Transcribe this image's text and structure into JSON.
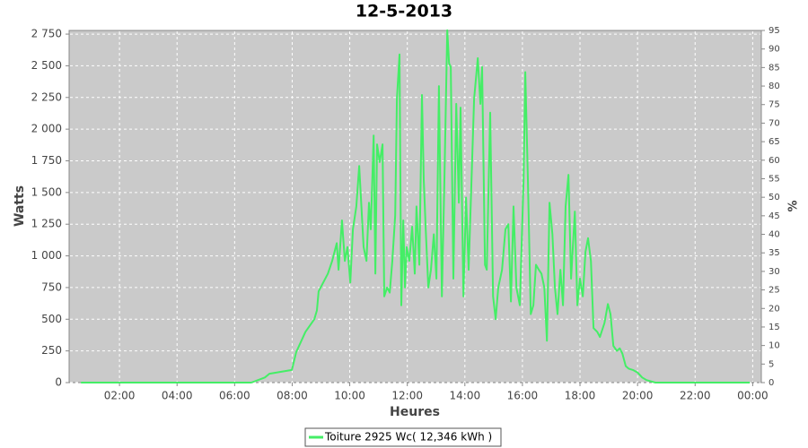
{
  "chart_data": {
    "type": "line",
    "title": "12-5-2013",
    "x_label": "Heures",
    "y_label": "Watts",
    "y2_label": "%",
    "x": [
      0.66,
      6.58,
      7.05,
      7.21,
      7.99,
      8.14,
      8.46,
      8.77,
      8.86,
      8.92,
      9.24,
      9.39,
      9.55,
      9.61,
      9.73,
      9.83,
      9.92,
      10.02,
      10.11,
      10.23,
      10.33,
      10.48,
      10.58,
      10.67,
      10.73,
      10.83,
      10.89,
      10.95,
      11.04,
      11.14,
      11.2,
      11.3,
      11.39,
      11.48,
      11.58,
      11.64,
      11.73,
      11.79,
      11.86,
      11.92,
      11.98,
      12.07,
      12.17,
      12.26,
      12.32,
      12.42,
      12.51,
      12.57,
      12.64,
      12.73,
      12.82,
      12.92,
      13.01,
      13.1,
      13.2,
      13.29,
      13.39,
      13.45,
      13.51,
      13.6,
      13.7,
      13.79,
      13.85,
      13.95,
      14.04,
      14.13,
      14.23,
      14.32,
      14.45,
      14.54,
      14.6,
      14.7,
      14.76,
      14.88,
      14.98,
      15.07,
      15.16,
      15.29,
      15.41,
      15.51,
      15.6,
      15.69,
      15.79,
      15.91,
      16.04,
      16.1,
      16.19,
      16.29,
      16.38,
      16.47,
      16.57,
      16.66,
      16.76,
      16.85,
      16.94,
      17.04,
      17.13,
      17.22,
      17.32,
      17.41,
      17.5,
      17.6,
      17.69,
      17.82,
      17.91,
      18.0,
      18.1,
      18.19,
      18.28,
      18.38,
      18.47,
      18.6,
      18.69,
      18.85,
      18.97,
      19.06,
      19.16,
      19.28,
      19.38,
      19.47,
      19.59,
      19.69,
      19.84,
      20.0,
      20.16,
      20.31,
      20.62,
      23.9
    ],
    "series": [
      {
        "name": "Toiture 2925 Wc( 12,346 kWh )",
        "color": "#44ee66",
        "values": [
          0,
          0,
          40,
          70,
          100,
          240,
          400,
          500,
          570,
          720,
          860,
          960,
          1100,
          890,
          1280,
          960,
          1070,
          790,
          1210,
          1390,
          1710,
          1070,
          960,
          1420,
          1210,
          1950,
          860,
          1880,
          1740,
          1880,
          680,
          750,
          710,
          960,
          1320,
          2240,
          2590,
          610,
          1280,
          750,
          1070,
          960,
          1230,
          860,
          1390,
          930,
          2270,
          1600,
          1210,
          750,
          890,
          1170,
          820,
          2340,
          680,
          1600,
          2780,
          2520,
          2490,
          820,
          2200,
          1420,
          2170,
          680,
          1460,
          890,
          1600,
          2240,
          2560,
          2200,
          2490,
          930,
          890,
          2130,
          680,
          500,
          750,
          890,
          1210,
          1250,
          640,
          1390,
          750,
          610,
          1600,
          2450,
          1600,
          540,
          610,
          930,
          890,
          860,
          750,
          330,
          1420,
          1170,
          750,
          540,
          890,
          610,
          1390,
          1640,
          820,
          1350,
          610,
          820,
          680,
          1030,
          1140,
          960,
          430,
          400,
          360,
          470,
          620,
          540,
          290,
          250,
          270,
          230,
          130,
          110,
          100,
          80,
          40,
          20,
          0,
          0
        ]
      }
    ],
    "xlim": [
      0.25,
      24.3
    ],
    "xticks": [
      {
        "value": 2,
        "label": "02:00"
      },
      {
        "value": 4,
        "label": "04:00"
      },
      {
        "value": 6,
        "label": "06:00"
      },
      {
        "value": 8,
        "label": "08:00"
      },
      {
        "value": 10,
        "label": "10:00"
      },
      {
        "value": 12,
        "label": "12:00"
      },
      {
        "value": 14,
        "label": "14:00"
      },
      {
        "value": 16,
        "label": "16:00"
      },
      {
        "value": 18,
        "label": "18:00"
      },
      {
        "value": 20,
        "label": "20:00"
      },
      {
        "value": 22,
        "label": "22:00"
      },
      {
        "value": 24,
        "label": "00:00"
      }
    ],
    "ylim": [
      0,
      2778.75
    ],
    "yticks": [
      0,
      250,
      500,
      750,
      {
        "value": 1000,
        "label": "1 000"
      },
      {
        "value": 1250,
        "label": "1 250"
      },
      {
        "value": 1500,
        "label": "1 500"
      },
      {
        "value": 1750,
        "label": "1 750"
      },
      {
        "value": 2000,
        "label": "2 000"
      },
      {
        "value": 2250,
        "label": "2 250"
      },
      {
        "value": 2500,
        "label": "2 500"
      },
      {
        "value": 2750,
        "label": "2 750"
      }
    ],
    "y2lim": [
      0,
      95
    ],
    "y2ticks": [
      0,
      5,
      10,
      15,
      20,
      25,
      30,
      35,
      40,
      45,
      50,
      55,
      60,
      65,
      70,
      75,
      80,
      85,
      90,
      95
    ],
    "grid": true,
    "legend": "bottom"
  }
}
